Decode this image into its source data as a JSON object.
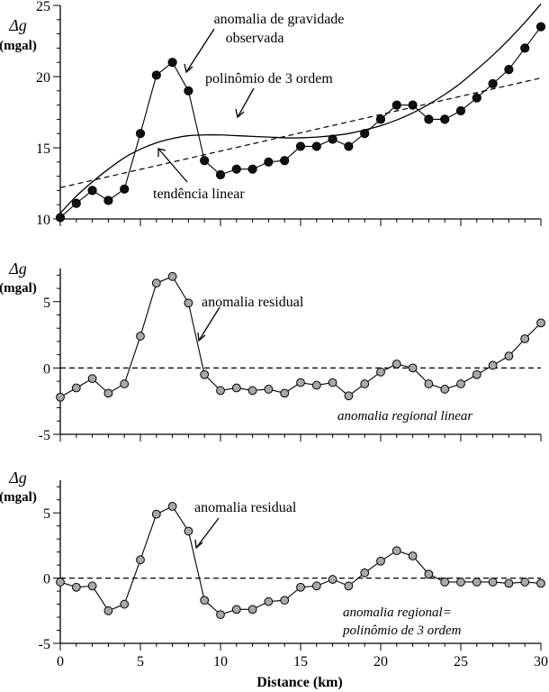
{
  "chart_data": [
    {
      "type": "scatter",
      "panel": "top",
      "ylabel": "Δg",
      "ylabel_unit": "(mgal)",
      "ylim": [
        10,
        25
      ],
      "yticks": [
        10,
        15,
        20,
        25
      ],
      "xlim": [
        0,
        30
      ],
      "series": [
        {
          "name": "anomalia de gravidade observada",
          "style": "filled-black-markers-line",
          "x": [
            0,
            1,
            2,
            3,
            4,
            5,
            6,
            7,
            8,
            9,
            10,
            11,
            12,
            13,
            14,
            15,
            16,
            17,
            18,
            19,
            20,
            21,
            22,
            23,
            24,
            25,
            26,
            27,
            28,
            29,
            30
          ],
          "values": [
            10.1,
            11.1,
            12.0,
            11.3,
            12.1,
            16.0,
            20.1,
            21.0,
            19.0,
            14.1,
            13.1,
            13.5,
            13.5,
            14.0,
            14.1,
            15.1,
            15.1,
            15.6,
            15.1,
            16.0,
            17.0,
            18.0,
            18.0,
            17.0,
            17.0,
            17.6,
            18.5,
            19.5,
            20.5,
            22.0,
            23.5
          ]
        },
        {
          "name": "polinômio de 3 ordem",
          "style": "solid-curve",
          "x": [
            0,
            1,
            2,
            3,
            4,
            5,
            6,
            7,
            8,
            9,
            10,
            11,
            12,
            13,
            14,
            15,
            16,
            17,
            18,
            19,
            20,
            21,
            22,
            23,
            24,
            25,
            26,
            27,
            28,
            29,
            30
          ],
          "values": [
            10.4,
            11.6,
            12.6,
            13.5,
            14.3,
            14.9,
            15.35,
            15.65,
            15.85,
            15.9,
            15.9,
            15.85,
            15.8,
            15.75,
            15.7,
            15.7,
            15.75,
            15.85,
            16.0,
            16.25,
            16.55,
            16.95,
            17.45,
            18.05,
            18.75,
            19.55,
            20.5,
            21.5,
            22.6,
            23.8,
            25.1
          ]
        },
        {
          "name": "tendência linear",
          "style": "dashed-line",
          "x": [
            0,
            30
          ],
          "values": [
            12.2,
            19.9
          ]
        }
      ],
      "annotations": [
        {
          "text_line1": "anomalia de gravidade",
          "text_line2": "observada"
        },
        {
          "text": "polinômio de 3 ordem"
        },
        {
          "text": "tendência linear"
        }
      ]
    },
    {
      "type": "scatter",
      "panel": "middle",
      "ylabel": "Δg",
      "ylabel_unit": "(mgal)",
      "ylim": [
        -5,
        7.5
      ],
      "yticks": [
        -5,
        0,
        5
      ],
      "xlim": [
        0,
        30
      ],
      "zero_line": "dashed",
      "series": [
        {
          "name": "anomalia residual",
          "style": "gray-markers-line",
          "x": [
            0,
            1,
            2,
            3,
            4,
            5,
            6,
            7,
            8,
            9,
            10,
            11,
            12,
            13,
            14,
            15,
            16,
            17,
            18,
            19,
            20,
            21,
            22,
            23,
            24,
            25,
            26,
            27,
            28,
            29,
            30
          ],
          "values": [
            -2.2,
            -1.5,
            -0.8,
            -1.9,
            -1.2,
            2.4,
            6.4,
            6.9,
            4.9,
            -0.5,
            -1.7,
            -1.5,
            -1.7,
            -1.6,
            -1.9,
            -1.1,
            -1.3,
            -1.1,
            -2.1,
            -1.2,
            -0.3,
            0.3,
            0.0,
            -1.2,
            -1.6,
            -1.2,
            -0.5,
            0.2,
            0.9,
            2.2,
            3.4
          ]
        }
      ],
      "annotations": [
        {
          "text": "anomalia residual"
        },
        {
          "text": "anomalia regional linear"
        }
      ]
    },
    {
      "type": "scatter",
      "panel": "bottom",
      "ylabel": "Δg",
      "ylabel_unit": "(mgal)",
      "ylim": [
        -5,
        7.5
      ],
      "yticks": [
        -5,
        0,
        5
      ],
      "xlim": [
        0,
        30
      ],
      "xticks": [
        0,
        5,
        10,
        15,
        20,
        25,
        30
      ],
      "xlabel": "Distance (km)",
      "zero_line": "dashed",
      "series": [
        {
          "name": "anomalia residual",
          "style": "gray-markers-line",
          "x": [
            0,
            1,
            2,
            3,
            4,
            5,
            6,
            7,
            8,
            9,
            10,
            11,
            12,
            13,
            14,
            15,
            16,
            17,
            18,
            19,
            20,
            21,
            22,
            23,
            24,
            25,
            26,
            27,
            28,
            29,
            30
          ],
          "values": [
            -0.3,
            -0.7,
            -0.6,
            -2.5,
            -2.0,
            1.4,
            4.9,
            5.5,
            3.6,
            -1.7,
            -2.8,
            -2.4,
            -2.4,
            -1.8,
            -1.7,
            -0.7,
            -0.6,
            -0.1,
            -0.6,
            0.4,
            1.3,
            2.1,
            1.7,
            0.3,
            -0.3,
            -0.3,
            -0.3,
            -0.3,
            -0.4,
            -0.3,
            -0.4
          ]
        }
      ],
      "annotations": [
        {
          "text": "anomalia residual"
        },
        {
          "text_line1": "anomalia regional=",
          "text_line2": "polinômio de 3 ordem"
        }
      ]
    }
  ]
}
